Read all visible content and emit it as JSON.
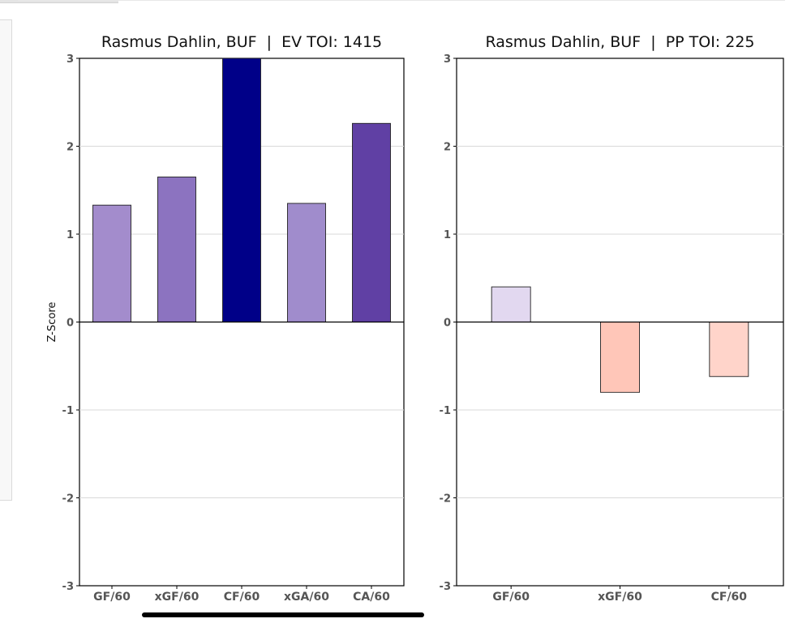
{
  "chart_data": [
    {
      "type": "bar",
      "title": "Rasmus Dahlin, BUF  |  EV TOI: 1415",
      "ylabel": "Z-Score",
      "xlabel": "",
      "ylim": [
        -3,
        3
      ],
      "yticks": [
        -3,
        -2,
        -1,
        0,
        1,
        2,
        3
      ],
      "grid": true,
      "categories": [
        "GF/60",
        "xGF/60",
        "CF/60",
        "xGA/60",
        "CA/60"
      ],
      "values": [
        1.33,
        1.65,
        3.0,
        1.35,
        2.26
      ],
      "colors": [
        "#a38ccc",
        "#8c73c0",
        "#000088",
        "#a08ccc",
        "#6040a4"
      ]
    },
    {
      "type": "bar",
      "title": "Rasmus Dahlin, BUF  |  PP TOI: 225",
      "ylabel": "",
      "xlabel": "",
      "ylim": [
        -3,
        3
      ],
      "yticks": [
        -3,
        -2,
        -1,
        0,
        1,
        2,
        3
      ],
      "grid": true,
      "categories": [
        "GF/60",
        "xGF/60",
        "CF/60"
      ],
      "values": [
        0.4,
        -0.8,
        -0.62
      ],
      "colors": [
        "#e2d8f0",
        "#ffc6b8",
        "#ffd4ca"
      ]
    }
  ]
}
